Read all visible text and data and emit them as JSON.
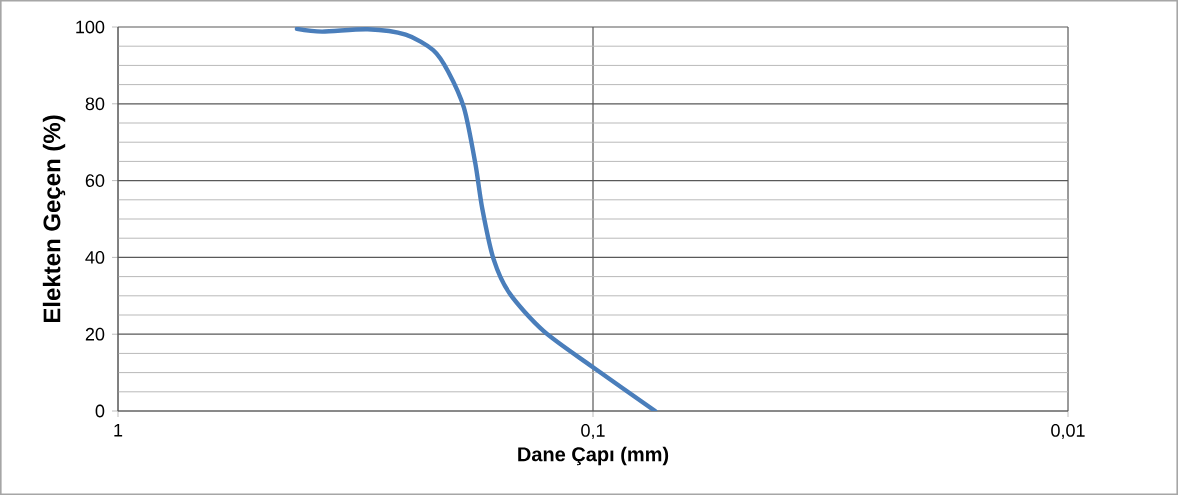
{
  "chart_data": {
    "type": "line",
    "xlabel": "Dane Çapı (mm)",
    "ylabel": "Elekten Geçen (%)",
    "log": "x",
    "xlim": [
      1,
      0.01
    ],
    "ylim": [
      0,
      100
    ],
    "xticks": [
      {
        "value": 1,
        "label": "1"
      },
      {
        "value": 0.1,
        "label": "0,1"
      },
      {
        "value": 0.01,
        "label": "0,01"
      }
    ],
    "yticks": [
      0,
      20,
      40,
      60,
      80,
      100
    ],
    "grid": true,
    "series": [
      {
        "color": "#4a7ebb",
        "x": [
          0.42,
          0.372,
          0.298,
          0.248,
          0.217,
          0.202,
          0.187,
          0.177,
          0.171,
          0.162,
          0.15,
          0.127,
          0.0995,
          0.074
        ],
        "values": [
          99.5,
          98.8,
          99.4,
          98,
          94,
          88.5,
          79,
          64.6,
          52.6,
          39.6,
          30.7,
          20.8,
          11.2,
          0
        ]
      }
    ]
  }
}
